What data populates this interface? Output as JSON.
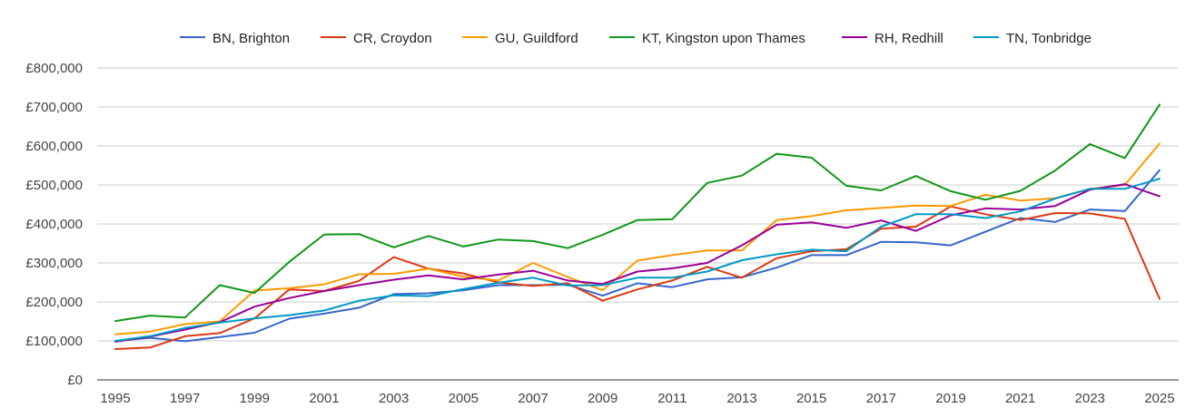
{
  "chart_data": {
    "type": "line",
    "title": "",
    "xlabel": "",
    "ylabel": "",
    "legend_position": "top",
    "grid": true,
    "ylim": [
      0,
      800000
    ],
    "y_ticks": [
      0,
      100000,
      200000,
      300000,
      400000,
      500000,
      600000,
      700000,
      800000
    ],
    "y_tick_labels": [
      "£0",
      "£100,000",
      "£200,000",
      "£300,000",
      "£400,000",
      "£500,000",
      "£600,000",
      "£700,000",
      "£800,000"
    ],
    "x": [
      1995,
      1996,
      1997,
      1998,
      1999,
      2000,
      2001,
      2002,
      2003,
      2004,
      2005,
      2006,
      2007,
      2008,
      2009,
      2010,
      2011,
      2012,
      2013,
      2014,
      2015,
      2016,
      2017,
      2018,
      2019,
      2020,
      2021,
      2022,
      2023,
      2024,
      2025
    ],
    "x_tick_labels": [
      "1995",
      "1997",
      "1999",
      "2001",
      "2003",
      "2005",
      "2007",
      "2009",
      "2011",
      "2013",
      "2015",
      "2017",
      "2019",
      "2021",
      "2023",
      "2025"
    ],
    "series": [
      {
        "name": "BN, Brighton",
        "color": "#3366cc",
        "values": [
          100000,
          108000,
          99000,
          110000,
          121000,
          157000,
          170000,
          185000,
          220000,
          222000,
          230000,
          243000,
          243000,
          244000,
          216000,
          248000,
          238000,
          258000,
          263000,
          288000,
          320000,
          320000,
          354000,
          353000,
          345000,
          380000,
          415000,
          405000,
          437000,
          433000,
          538000
        ]
      },
      {
        "name": "CR, Croydon",
        "color": "#dc3912",
        "values": [
          79000,
          83000,
          112000,
          120000,
          158000,
          232000,
          228000,
          254000,
          315000,
          285000,
          273000,
          250000,
          241000,
          248000,
          203000,
          232000,
          255000,
          290000,
          262000,
          312000,
          330000,
          335000,
          388000,
          393000,
          445000,
          425000,
          410000,
          428000,
          427000,
          413000,
          208000
        ]
      },
      {
        "name": "GU, Guildford",
        "color": "#ff9900",
        "values": [
          117000,
          124000,
          143000,
          150000,
          229000,
          235000,
          245000,
          271000,
          272000,
          285000,
          265000,
          255000,
          300000,
          264000,
          230000,
          306000,
          320000,
          332000,
          332000,
          410000,
          420000,
          435000,
          441000,
          447000,
          446000,
          475000,
          460000,
          466000,
          490000,
          500000,
          606000
        ]
      },
      {
        "name": "KT, Kingston upon Thames",
        "color": "#109618",
        "values": [
          151000,
          165000,
          160000,
          243000,
          223000,
          303000,
          373000,
          374000,
          340000,
          369000,
          342000,
          360000,
          356000,
          338000,
          372000,
          410000,
          412000,
          505000,
          524000,
          580000,
          570000,
          498000,
          486000,
          523000,
          484000,
          462000,
          485000,
          537000,
          605000,
          569000,
          706000
        ]
      },
      {
        "name": "RH, Redhill",
        "color": "#990099",
        "values": [
          98000,
          111000,
          129000,
          148000,
          188000,
          210000,
          228000,
          243000,
          257000,
          268000,
          258000,
          270000,
          280000,
          255000,
          246000,
          278000,
          286000,
          300000,
          345000,
          398000,
          404000,
          390000,
          409000,
          382000,
          422000,
          440000,
          437000,
          446000,
          488000,
          502000,
          471000
        ]
      },
      {
        "name": "TN, Tonbridge",
        "color": "#0099c6",
        "values": [
          100000,
          112000,
          133000,
          147000,
          158000,
          166000,
          178000,
          203000,
          217000,
          215000,
          233000,
          249000,
          262000,
          242000,
          243000,
          262000,
          262000,
          278000,
          307000,
          322000,
          334000,
          330000,
          393000,
          425000,
          425000,
          415000,
          432000,
          465000,
          490000,
          490000,
          516000
        ]
      }
    ]
  }
}
